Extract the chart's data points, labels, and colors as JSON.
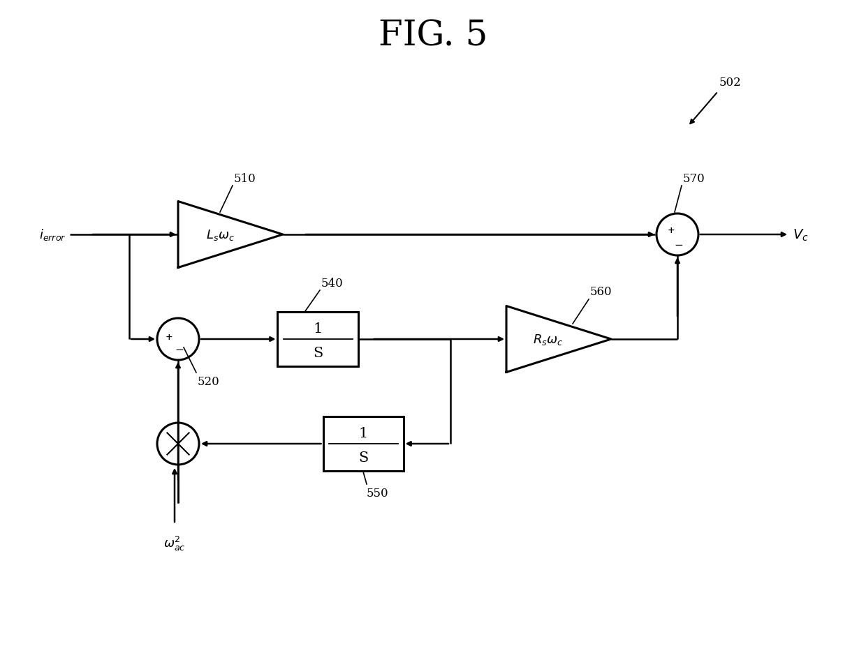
{
  "title": "FIG. 5",
  "title_fontsize": 36,
  "bg_color": "#ffffff",
  "line_color": "#000000",
  "label_502": "502",
  "label_510": "510",
  "label_520": "520",
  "label_540": "540",
  "label_550": "550",
  "label_560": "560",
  "label_570": "570",
  "figsize": [
    12.4,
    9.37
  ],
  "dpi": 100
}
